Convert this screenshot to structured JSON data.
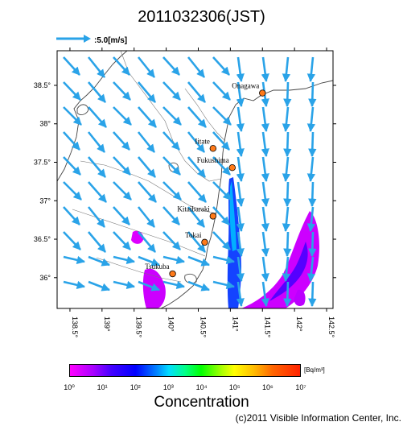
{
  "title": "2011032306(JST)",
  "legend": {
    "arrow_label": ":5.0[m/s]",
    "arrow_speed_ms": 5.0,
    "arrow_color": "#2aa3e8"
  },
  "map": {
    "lon_range": [
      138.3,
      142.6
    ],
    "lat_range": [
      35.6,
      38.95
    ],
    "lon_ticks": [
      {
        "value": 138.5,
        "label": "138.5°"
      },
      {
        "value": 139.0,
        "label": "139°"
      },
      {
        "value": 139.5,
        "label": "139.5°"
      },
      {
        "value": 140.0,
        "label": "140°"
      },
      {
        "value": 140.5,
        "label": "140.5°"
      },
      {
        "value": 141.0,
        "label": "141°"
      },
      {
        "value": 141.5,
        "label": "141.5°"
      },
      {
        "value": 142.0,
        "label": "142°"
      },
      {
        "value": 142.5,
        "label": "142.5°"
      }
    ],
    "lat_ticks": [
      {
        "value": 38.5,
        "label": "38.5°"
      },
      {
        "value": 38.0,
        "label": "38°"
      },
      {
        "value": 37.5,
        "label": "37.5°"
      },
      {
        "value": 37.0,
        "label": "37°"
      },
      {
        "value": 36.5,
        "label": "36.5°"
      },
      {
        "value": 36.0,
        "label": "36°"
      }
    ],
    "locations": [
      {
        "name": "Onagawa",
        "lon": 141.5,
        "lat": 38.4
      },
      {
        "name": "Iitate",
        "lon": 140.73,
        "lat": 37.68
      },
      {
        "name": "Fukushima",
        "lon": 141.03,
        "lat": 37.43
      },
      {
        "name": "Kitaibaraki",
        "lon": 140.73,
        "lat": 36.8
      },
      {
        "name": "Tokai",
        "lon": 140.6,
        "lat": 36.46
      },
      {
        "name": "Tsukuba",
        "lon": 140.1,
        "lat": 36.05
      }
    ]
  },
  "colorbar": {
    "unit": "[Bq/m³]",
    "ticks": [
      "10⁰",
      "10¹",
      "10²",
      "10³",
      "10⁴",
      "10⁵",
      "10⁶",
      "10⁷"
    ],
    "title": "Concentration"
  },
  "credit": "(c)2011 Visible Information Center, Inc."
}
